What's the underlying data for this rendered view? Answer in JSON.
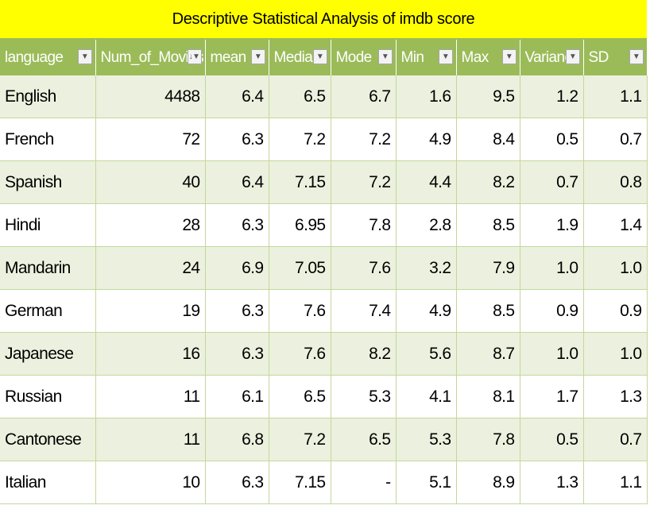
{
  "title": "Descriptive Statistical Analysis of imdb score",
  "columns": [
    "language",
    "Num_of_Movies",
    "mean",
    "Median",
    "Mode",
    "Min",
    "Max",
    "Variance",
    "SD"
  ],
  "filter_icons": [
    "filter-dropdown-icon",
    "filter-active-icon"
  ],
  "colors": {
    "title_bg": "#ffff00",
    "header_bg": "#9bbb59",
    "band_bg": "#ebf1de"
  },
  "rows": [
    [
      "English",
      "4488",
      "6.4",
      "6.5",
      "6.7",
      "1.6",
      "9.5",
      "1.2",
      "1.1"
    ],
    [
      "French",
      "72",
      "6.3",
      "7.2",
      "7.2",
      "4.9",
      "8.4",
      "0.5",
      "0.7"
    ],
    [
      "Spanish",
      "40",
      "6.4",
      "7.15",
      "7.2",
      "4.4",
      "8.2",
      "0.7",
      "0.8"
    ],
    [
      "Hindi",
      "28",
      "6.3",
      "6.95",
      "7.8",
      "2.8",
      "8.5",
      "1.9",
      "1.4"
    ],
    [
      "Mandarin",
      "24",
      "6.9",
      "7.05",
      "7.6",
      "3.2",
      "7.9",
      "1.0",
      "1.0"
    ],
    [
      "German",
      "19",
      "6.3",
      "7.6",
      "7.4",
      "4.9",
      "8.5",
      "0.9",
      "0.9"
    ],
    [
      "Japanese",
      "16",
      "6.3",
      "7.6",
      "8.2",
      "5.6",
      "8.7",
      "1.0",
      "1.0"
    ],
    [
      "Russian",
      "11",
      "6.1",
      "6.5",
      "5.3",
      "4.1",
      "8.1",
      "1.7",
      "1.3"
    ],
    [
      "Cantonese",
      "11",
      "6.8",
      "7.2",
      "6.5",
      "5.3",
      "7.8",
      "0.5",
      "0.7"
    ],
    [
      "Italian",
      "10",
      "6.3",
      "7.15",
      "-",
      "5.1",
      "8.9",
      "1.3",
      "1.1"
    ]
  ]
}
